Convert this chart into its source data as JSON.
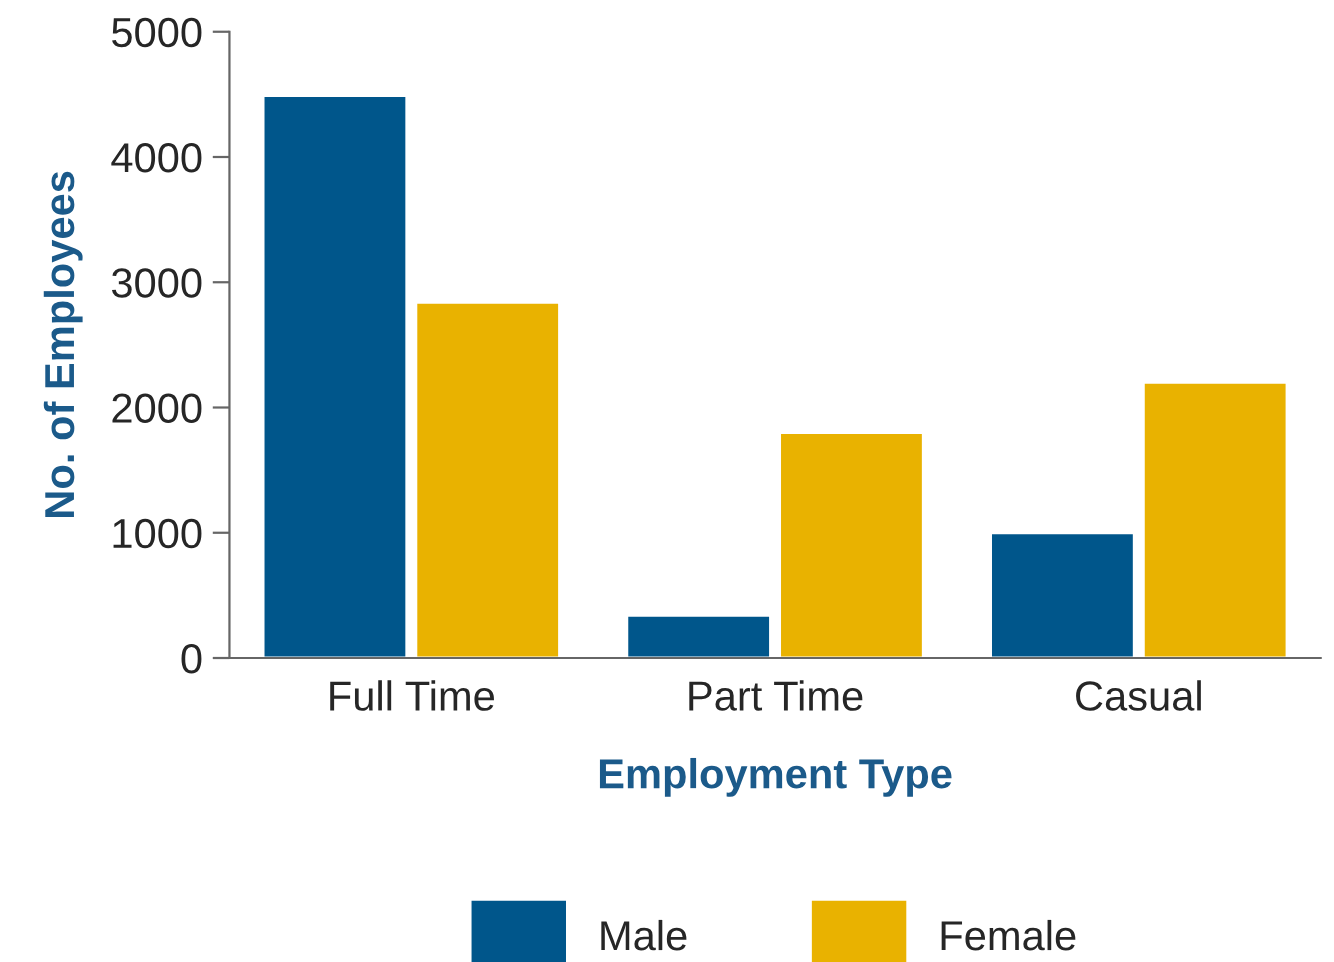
{
  "chart_data": {
    "type": "bar",
    "xlabel": "Employment Type",
    "ylabel": "No. of Employees",
    "categories": [
      "Full Time",
      "Part Time",
      "Casual"
    ],
    "series": [
      {
        "name": "Male",
        "color": "#00568b",
        "values": [
          4490,
          340,
          1000
        ]
      },
      {
        "name": "Female",
        "color": "#e9b200",
        "values": [
          2840,
          1800,
          2200
        ]
      }
    ],
    "ylim": [
      0,
      5000
    ],
    "yticks": [
      0,
      1000,
      2000,
      3000,
      4000,
      5000
    ],
    "grid": false,
    "legend": "bottom"
  }
}
